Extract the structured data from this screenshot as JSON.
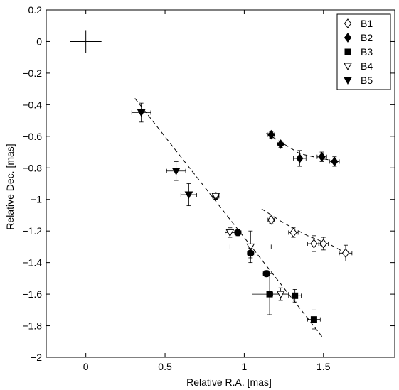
{
  "chart_data": {
    "type": "scatter",
    "xlabel": "Relative R.A. [mas]",
    "ylabel": "Relative Dec. [mas]",
    "xlim": [
      -0.25,
      1.95
    ],
    "ylim": [
      -2.0,
      0.2
    ],
    "xticks": [
      0,
      0.5,
      1,
      1.5
    ],
    "xtick_labels": [
      "0",
      "0.5",
      "1",
      "1.5"
    ],
    "yticks": [
      0.2,
      0,
      -0.2,
      -0.4,
      -0.6,
      -0.8,
      -1,
      -1.2,
      -1.4,
      -1.6,
      -1.8,
      -2
    ],
    "ytick_labels": [
      "0.2",
      "0",
      "−0.2",
      "−0.4",
      "−0.6",
      "−0.8",
      "−1",
      "−1.2",
      "−1.4",
      "−1.6",
      "−1.8",
      "−2"
    ],
    "grid": false,
    "legend_position": "top-right",
    "core_marker": {
      "x": 0,
      "y": 0,
      "marker": "plus"
    },
    "series": [
      {
        "name": "B1",
        "marker": "diamond-open",
        "points": [
          {
            "x": 0.82,
            "y": -0.98,
            "xerr": 0.02,
            "yerr": 0.02
          },
          {
            "x": 1.17,
            "y": -1.13,
            "xerr": 0.02,
            "yerr": 0.02
          },
          {
            "x": 1.31,
            "y": -1.21,
            "xerr": 0.03,
            "yerr": 0.03
          },
          {
            "x": 1.44,
            "y": -1.28,
            "xerr": 0.04,
            "yerr": 0.05
          },
          {
            "x": 1.5,
            "y": -1.28,
            "xerr": 0.03,
            "yerr": 0.04
          },
          {
            "x": 1.64,
            "y": -1.34,
            "xerr": 0.04,
            "yerr": 0.05
          }
        ]
      },
      {
        "name": "B2",
        "marker": "diamond-filled",
        "points": [
          {
            "x": 1.17,
            "y": -0.59,
            "xerr": 0.02,
            "yerr": 0.02
          },
          {
            "x": 1.23,
            "y": -0.65,
            "xerr": 0.02,
            "yerr": 0.02
          },
          {
            "x": 1.35,
            "y": -0.74,
            "xerr": 0.04,
            "yerr": 0.05
          },
          {
            "x": 1.49,
            "y": -0.73,
            "xerr": 0.03,
            "yerr": 0.03
          },
          {
            "x": 1.57,
            "y": -0.76,
            "xerr": 0.03,
            "yerr": 0.03
          }
        ]
      },
      {
        "name": "B3",
        "marker": "square-filled",
        "points": [
          {
            "x": 1.16,
            "y": -1.6,
            "xerr": 0.11,
            "yerr": 0.13
          },
          {
            "x": 1.32,
            "y": -1.61,
            "xerr": 0.04,
            "yerr": 0.04
          },
          {
            "x": 1.44,
            "y": -1.76,
            "xerr": 0.04,
            "yerr": 0.06
          }
        ]
      },
      {
        "name": "B4",
        "marker": "triangle-down-open",
        "points": [
          {
            "x": 0.82,
            "y": -0.98,
            "xerr": 0.02,
            "yerr": 0.02
          },
          {
            "x": 0.91,
            "y": -1.21,
            "xerr": 0.03,
            "yerr": 0.03
          },
          {
            "x": 1.04,
            "y": -1.3,
            "xerr": 0.13,
            "yerr": 0.1
          },
          {
            "x": 1.23,
            "y": -1.6,
            "xerr": 0.05,
            "yerr": 0.04
          }
        ]
      },
      {
        "name": "B5",
        "marker": "triangle-down-filled",
        "points": [
          {
            "x": 0.35,
            "y": -0.45,
            "xerr": 0.06,
            "yerr": 0.06
          },
          {
            "x": 0.57,
            "y": -0.82,
            "xerr": 0.06,
            "yerr": 0.06
          },
          {
            "x": 0.65,
            "y": -0.97,
            "xerr": 0.05,
            "yerr": 0.07
          }
        ]
      },
      {
        "marker": "circle-filled",
        "points": [
          {
            "x": 0.96,
            "y": -1.21,
            "xerr": 0.02,
            "yerr": 0.02
          },
          {
            "x": 1.04,
            "y": -1.34,
            "xerr": 0.02,
            "yerr": 0.03
          },
          {
            "x": 1.14,
            "y": -1.47,
            "xerr": 0.02,
            "yerr": 0.02
          }
        ]
      }
    ],
    "fit_lines": [
      {
        "points": [
          [
            0.31,
            -0.36
          ],
          [
            1.5,
            -1.88
          ]
        ]
      },
      {
        "points": [
          [
            1.14,
            -0.58
          ],
          [
            1.22,
            -0.63
          ],
          [
            1.35,
            -0.71
          ],
          [
            1.48,
            -0.74
          ],
          [
            1.6,
            -0.76
          ]
        ]
      },
      {
        "points": [
          [
            1.11,
            -1.06
          ],
          [
            1.25,
            -1.15
          ],
          [
            1.4,
            -1.23
          ],
          [
            1.55,
            -1.29
          ],
          [
            1.66,
            -1.35
          ]
        ]
      }
    ]
  }
}
